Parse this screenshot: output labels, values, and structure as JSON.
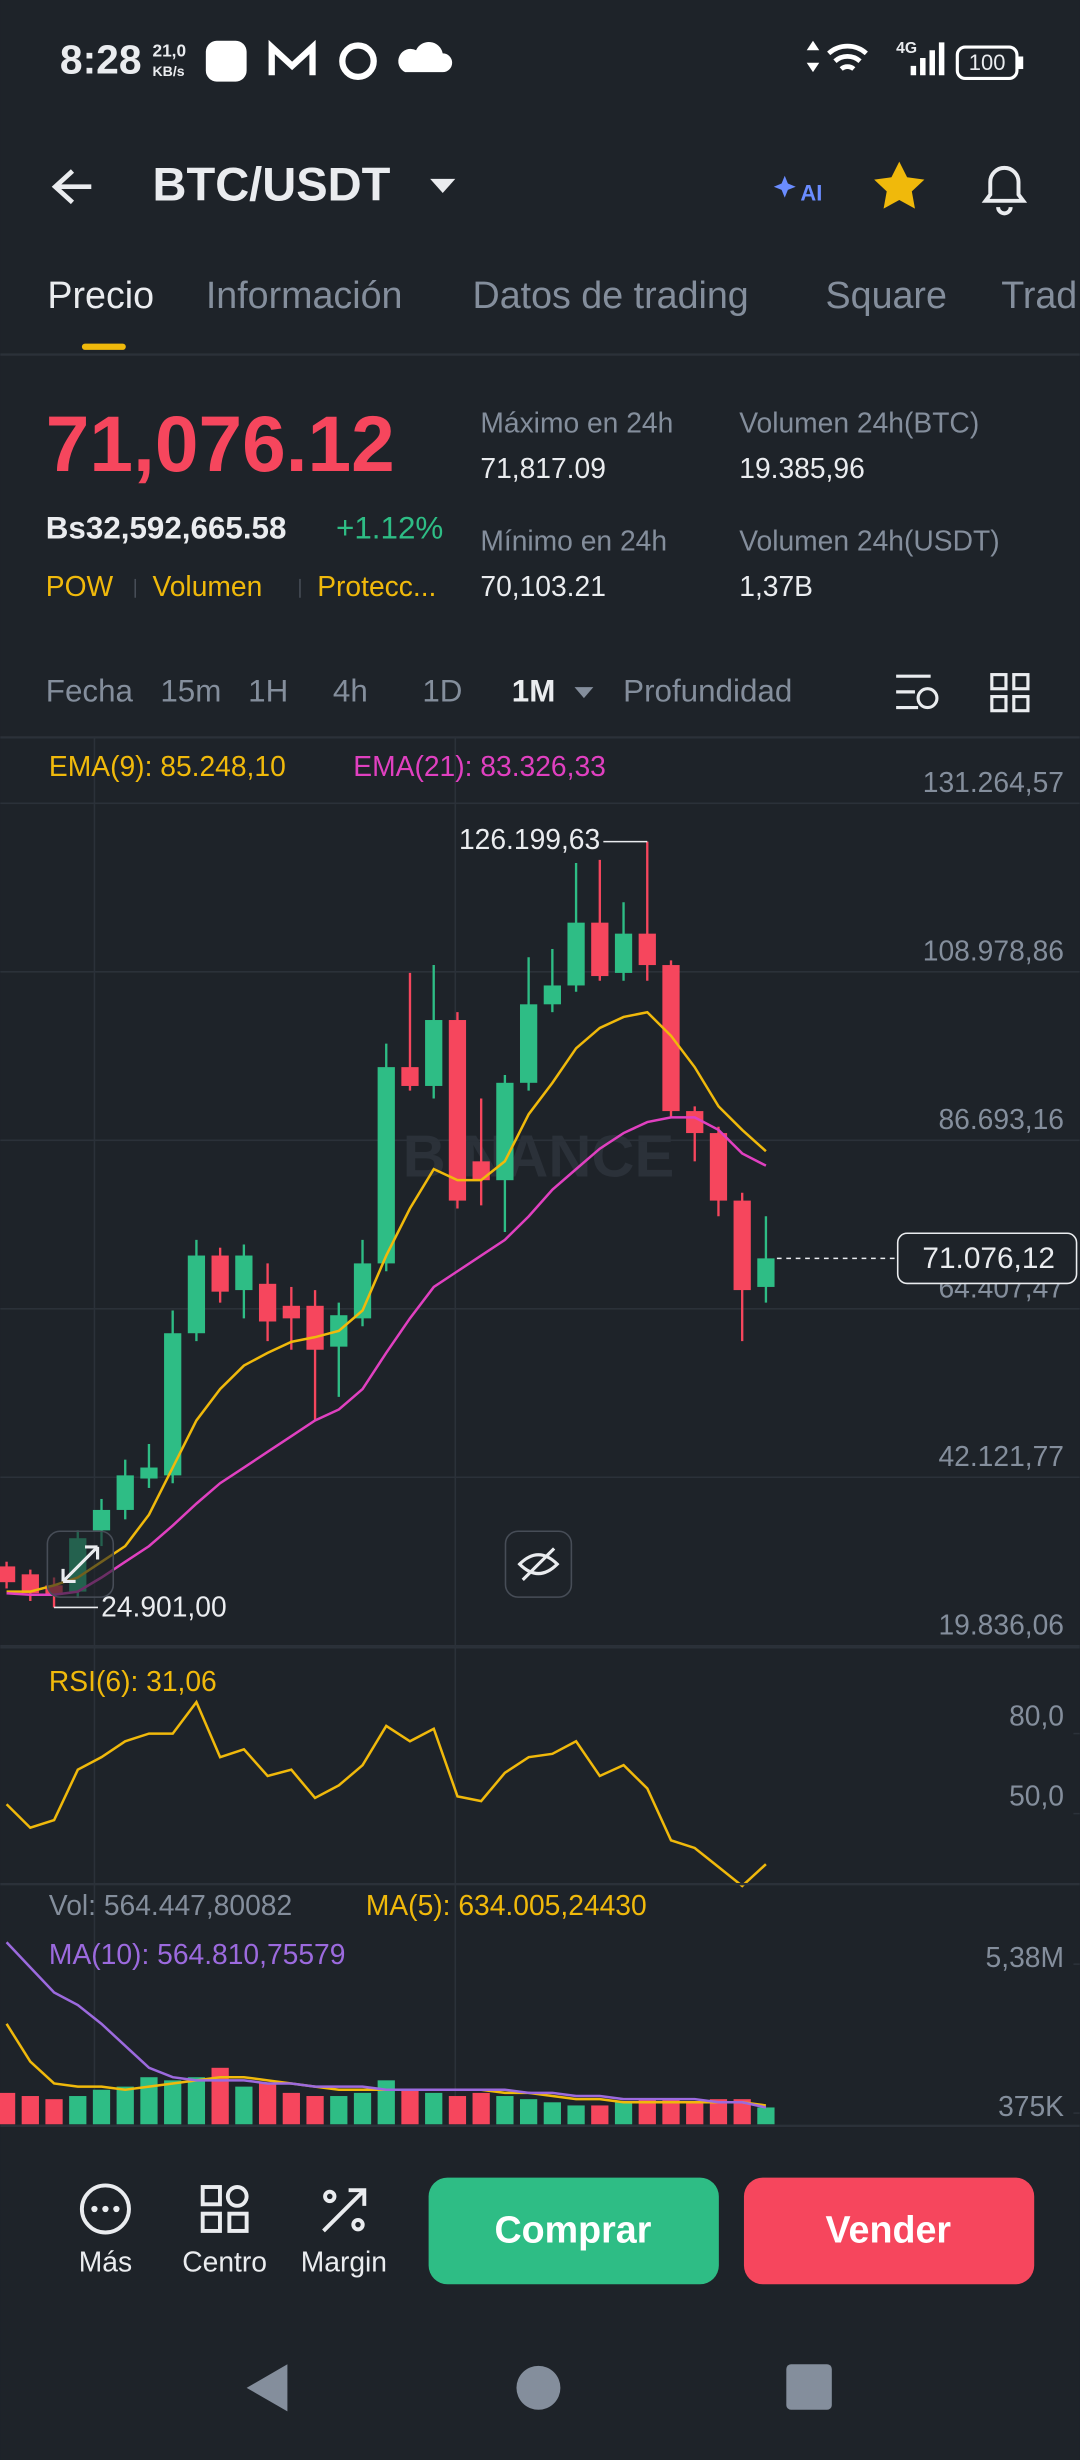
{
  "status_bar": {
    "time": "8:28",
    "speed": "21,0",
    "speed_unit": "KB/s",
    "network": "4G",
    "battery": "100"
  },
  "header": {
    "pair": "BTC/USDT"
  },
  "tabs": [
    "Precio",
    "Información",
    "Datos de trading",
    "Square",
    "Trad"
  ],
  "ticker": {
    "price": "71,076.12",
    "fiat_price": "Bs32,592,665.58",
    "change": "+1.12%",
    "tags": [
      "POW",
      "Volumen",
      "Protecc..."
    ],
    "stats": [
      {
        "label": "Máximo en 24h",
        "value": "71,817.09"
      },
      {
        "label": "Volumen 24h(BTC)",
        "value": "19.385,96"
      },
      {
        "label": "Mínimo en 24h",
        "value": "70,103.21"
      },
      {
        "label": "Volumen 24h(USDT)",
        "value": "1,37B"
      }
    ]
  },
  "intervals": [
    "Fecha",
    "15m",
    "1H",
    "4h",
    "1D",
    "1M",
    "Profundidad"
  ],
  "watermark": "BINANCE",
  "chart_data": [
    {
      "type": "candlestick",
      "up_color": "#2ebd85",
      "down_color": "#f6465d",
      "grid": true,
      "open": [
        30330,
        29284,
        27829,
        27000,
        35100,
        37800,
        41955,
        42372,
        61173,
        71450,
        66880,
        67710,
        64800,
        64800,
        59400,
        63141,
        70411,
        96372,
        93880,
        102602,
        83909,
        81417,
        94296,
        104680,
        107173,
        115480,
        108833,
        114026,
        109872,
        90557,
        87649,
        78716,
        67296
      ],
      "high": [
        30953,
        29907,
        28868,
        35100,
        39254,
        44450,
        46524,
        64178,
        73525,
        72488,
        72903,
        70411,
        67296,
        66880,
        65219,
        73525,
        99487,
        108833,
        109872,
        103640,
        92219,
        95334,
        110910,
        112000,
        123372,
        123787,
        118180,
        126199.63,
        110495,
        91180,
        88480,
        79754,
        76639
      ],
      "low": [
        27414,
        25754,
        24901.0,
        26171,
        33023,
        36555,
        40709,
        41332,
        60134,
        65219,
        63141,
        60134,
        58990,
        49637,
        52754,
        62103,
        69372,
        93257,
        92219,
        77678,
        78093,
        74564,
        93257,
        103640,
        106340,
        107796,
        107796,
        107796,
        89726,
        83909,
        76639,
        60134,
        65219
      ],
      "close": [
        28245,
        26794,
        26587,
        34061,
        37800,
        42372,
        43409,
        61173,
        71450,
        66672,
        71450,
        62726,
        63141,
        58990,
        63556,
        70411,
        96372,
        93880,
        102602,
        78716,
        81417,
        94296,
        104680,
        107173,
        115480,
        108417,
        114026,
        109872,
        90557,
        87649,
        78716,
        66880,
        71076.12
      ],
      "ylim": [
        19836.06,
        139573
      ],
      "yticks": [
        {
          "value": 131264.57,
          "label": "131.264,57"
        },
        {
          "value": 108978.86,
          "label": "108.978,86"
        },
        {
          "value": 86693.16,
          "label": "86.693,16"
        },
        {
          "value": 64407.47,
          "label": "64.407,47"
        },
        {
          "value": 42121.77,
          "label": "42.121,77"
        },
        {
          "value": 19836.06,
          "label": "19.836,06"
        }
      ],
      "annotations": {
        "high_label": "126.199,63",
        "low_label": "24.901,00",
        "last_label": "71.076,12"
      },
      "series": [
        {
          "name": "EMA(9): 85.248,10",
          "color": "#f0b90b",
          "values": [
            26999,
            26999,
            27830,
            28869,
            30946,
            33023,
            37177,
            43408,
            49639,
            53793,
            56908,
            58570,
            60024,
            60647,
            61478,
            64178,
            71447,
            77678,
            82871,
            81417,
            81417,
            83909,
            90140,
            94294,
            98864,
            101564,
            103018,
            103641,
            100525,
            96371,
            91179,
            88063,
            85248.1
          ]
        },
        {
          "name": "EMA(21): 83.326,33",
          "color": "#e040c0",
          "values": [
            26792,
            26584,
            26584,
            26999,
            28869,
            30946,
            33023,
            35723,
            38631,
            41331,
            43408,
            45485,
            47562,
            49639,
            51093,
            53793,
            58570,
            63139,
            67293,
            69370,
            71447,
            73524,
            76640,
            80171,
            82871,
            85571,
            87648,
            89102,
            89725,
            89725,
            88063,
            84948,
            83326.33
          ]
        }
      ]
    },
    {
      "type": "line",
      "ylim": [
        20,
        110
      ],
      "yticks": [
        {
          "value": 80,
          "label": "80,0"
        },
        {
          "value": 50,
          "label": "50,0"
        }
      ],
      "series": [
        {
          "name": "RSI(6): 31,06",
          "color": "#f0b90b",
          "values": [
            53.5,
            44.7,
            47.6,
            66.5,
            71.2,
            77.1,
            80,
            80,
            91.8,
            71.2,
            74.1,
            64.1,
            66.5,
            55.9,
            60.6,
            68.2,
            82.9,
            77.1,
            81.8,
            56.5,
            54.7,
            65.3,
            71.2,
            72.4,
            77.1,
            64.1,
            68.2,
            59.4,
            40,
            37.1,
            30,
            22.9,
            31.06
          ]
        }
      ]
    },
    {
      "type": "bar",
      "up_color": "#2ebd85",
      "down_color": "#f6465d",
      "title": "Vol: 564.447,80082",
      "ylim": [
        0,
        6500000
      ],
      "yticks": [
        {
          "value": 5380000,
          "label": "5,38M"
        },
        {
          "value": 375000,
          "label": "375K"
        }
      ],
      "values": [
        1054000,
        948600,
        843200,
        948600,
        1159400,
        1264800,
        1581000,
        1475600,
        1581000,
        1897200,
        1264800,
        1370200,
        1054000,
        948600,
        948600,
        1054000,
        1475600,
        1159400,
        1054000,
        948600,
        1054000,
        948600,
        843200,
        737800,
        632400,
        632400,
        737800,
        843200,
        843200,
        737800,
        843200,
        843200,
        564447.80082
      ],
      "series": [
        {
          "name": "MA(5): 634.005,24430",
          "color": "#f0b90b",
          "values": [
            3372800,
            2108000,
            1370200,
            1264800,
            1264800,
            1159400,
            1264800,
            1370200,
            1475600,
            1581000,
            1581000,
            1475600,
            1370200,
            1264800,
            1159400,
            1159400,
            1159400,
            1159400,
            1159400,
            1159400,
            1159400,
            1054000,
            1054000,
            948600,
            843200,
            843200,
            737800,
            737800,
            737800,
            737800,
            737800,
            737800,
            634005.2443
          ]
        },
        {
          "name": "MA(10): 564.810,75579",
          "color": "#9c6ade",
          "values": [
            6113200,
            5270000,
            4426800,
            4005200,
            3372800,
            2635000,
            1897200,
            1581000,
            1475600,
            1475600,
            1475600,
            1370200,
            1370200,
            1264800,
            1264800,
            1264800,
            1159400,
            1159400,
            1159400,
            1159400,
            1159400,
            1159400,
            1054000,
            1054000,
            948600,
            948600,
            843200,
            843200,
            843200,
            843200,
            737800,
            737800,
            564810.75579
          ]
        }
      ]
    }
  ],
  "bottom_bar": {
    "actions": [
      "Más",
      "Centro",
      "Margin"
    ],
    "buy": "Comprar",
    "sell": "Vender"
  }
}
